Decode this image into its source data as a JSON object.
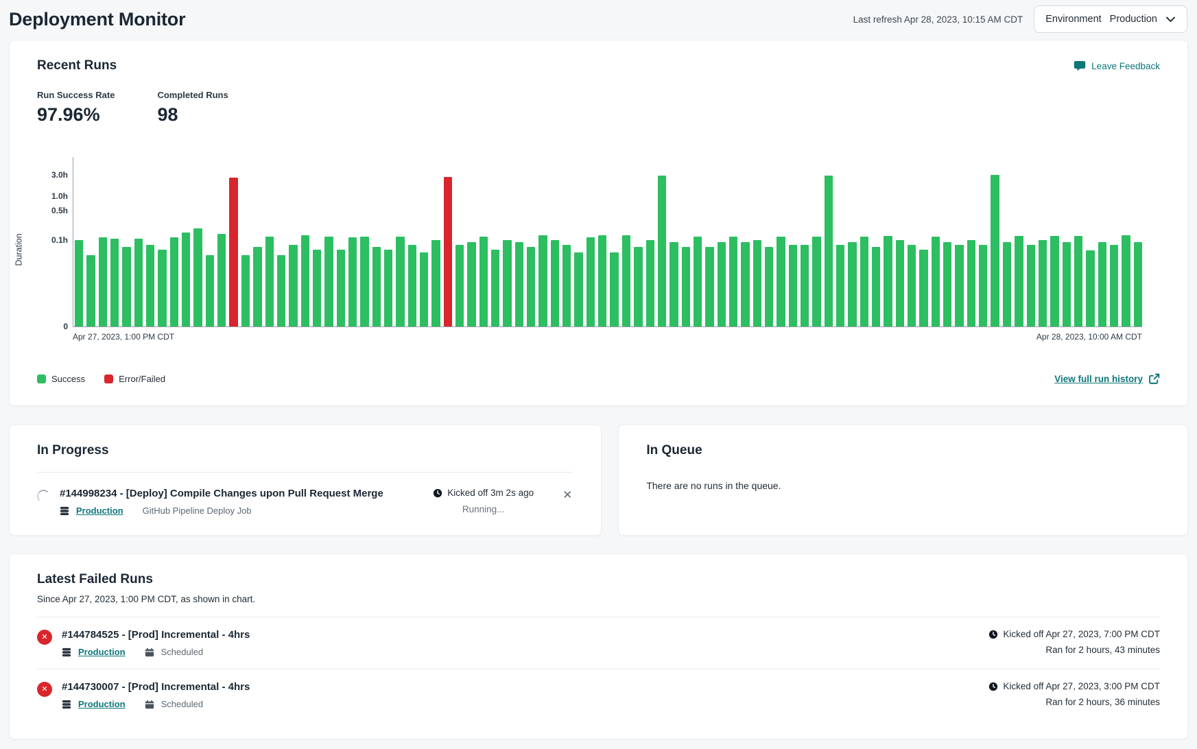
{
  "header": {
    "title": "Deployment Monitor",
    "last_refresh": "Last refresh Apr 28, 2023, 10:15 AM CDT",
    "env_label": "Environment",
    "env_value": "Production"
  },
  "colors": {
    "accent_teal": "#0e767a",
    "success_green": "#2cbe61",
    "error_red": "#d8262c",
    "heading_navy": "#1b2733"
  },
  "recent_runs": {
    "title": "Recent Runs",
    "feedback_label": "Leave Feedback",
    "stats": [
      {
        "label": "Run Success Rate",
        "value": "97.96%"
      },
      {
        "label": "Completed Runs",
        "value": "98"
      }
    ],
    "view_history_label": "View full run history"
  },
  "chart_data": {
    "type": "bar",
    "title": "",
    "ylabel": "Duration",
    "unit": "hours",
    "scale": "log-like",
    "y_ticks": [
      "3.0h",
      "1.0h",
      "0.5h",
      "0.1h",
      "0"
    ],
    "x_start_label": "Apr 27, 2023, 1:00 PM CDT",
    "x_end_label": "Apr 28, 2023, 10:00 AM CDT",
    "values": [
      0.1,
      0.07,
      0.115,
      0.11,
      0.085,
      0.11,
      0.09,
      0.08,
      0.115,
      0.15,
      0.19,
      0.07,
      0.14,
      2.6,
      0.07,
      0.085,
      0.12,
      0.07,
      0.09,
      0.13,
      0.08,
      0.12,
      0.08,
      0.115,
      0.12,
      0.085,
      0.08,
      0.12,
      0.09,
      0.075,
      0.1,
      2.72,
      0.09,
      0.095,
      0.12,
      0.08,
      0.1,
      0.095,
      0.085,
      0.13,
      0.1,
      0.09,
      0.075,
      0.115,
      0.13,
      0.075,
      0.13,
      0.085,
      0.1,
      2.9,
      0.095,
      0.085,
      0.12,
      0.085,
      0.095,
      0.12,
      0.095,
      0.1,
      0.085,
      0.12,
      0.09,
      0.09,
      0.12,
      2.9,
      0.09,
      0.095,
      0.12,
      0.085,
      0.125,
      0.1,
      0.09,
      0.08,
      0.12,
      0.095,
      0.09,
      0.1,
      0.09,
      3.05,
      0.095,
      0.125,
      0.09,
      0.1,
      0.125,
      0.095,
      0.125,
      0.078,
      0.095,
      0.09,
      0.13,
      0.095
    ],
    "failed_indices": [
      13,
      31
    ],
    "legend": [
      {
        "label": "Success",
        "color": "#2cbe61"
      },
      {
        "label": "Error/Failed",
        "color": "#d8262c"
      }
    ]
  },
  "in_progress": {
    "title": "In Progress",
    "run": {
      "name": "#144998234 - [Deploy] Compile Changes upon Pull Request Merge",
      "env_link": "Production",
      "job_type": "GitHub Pipeline Deploy Job",
      "kicked_off": "Kicked off 3m 2s ago",
      "status": "Running..."
    }
  },
  "in_queue": {
    "title": "In Queue",
    "empty_message": "There are no runs in the queue."
  },
  "failed_runs": {
    "title": "Latest Failed Runs",
    "subtitle": "Since Apr 27, 2023, 1:00 PM CDT, as shown in chart.",
    "runs": [
      {
        "name": "#144784525 - [Prod] Incremental - 4hrs",
        "env_link": "Production",
        "schedule": "Scheduled",
        "kicked_off": "Kicked off Apr 27, 2023, 7:00 PM CDT",
        "ran_for": "Ran for 2 hours, 43 minutes"
      },
      {
        "name": "#144730007 - [Prod] Incremental - 4hrs",
        "env_link": "Production",
        "schedule": "Scheduled",
        "kicked_off": "Kicked off Apr 27, 2023, 3:00 PM CDT",
        "ran_for": "Ran for 2 hours, 36 minutes"
      }
    ]
  }
}
